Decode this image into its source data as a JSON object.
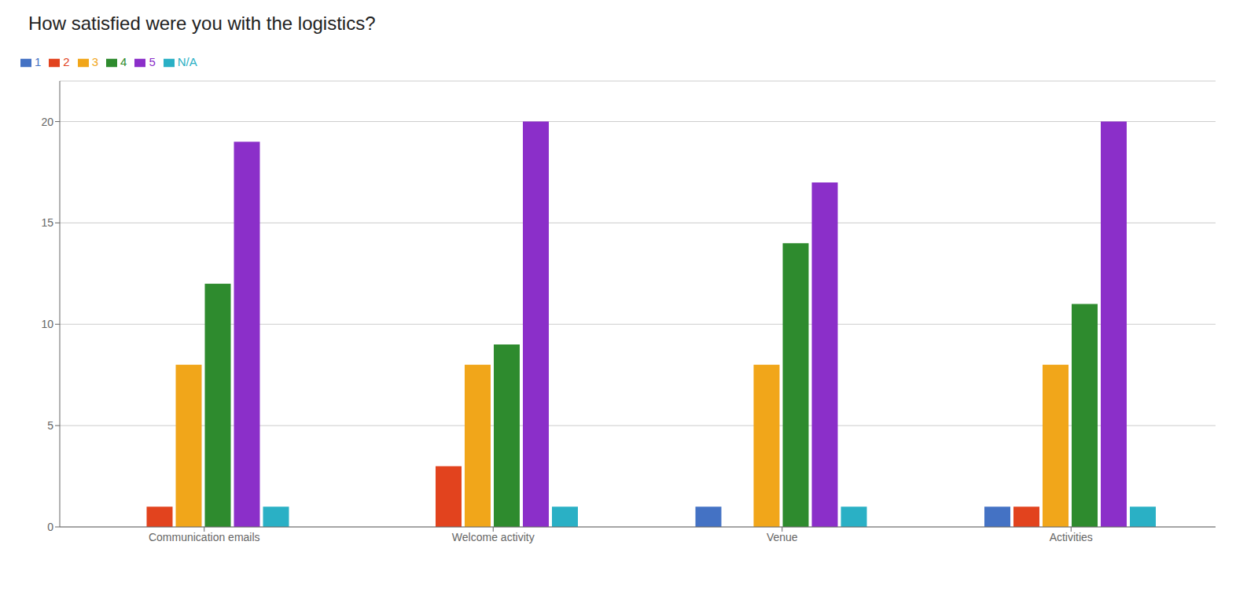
{
  "chart_data": {
    "type": "bar",
    "title": "How satisfied were you with the logistics?",
    "categories": [
      "Communication emails",
      "Welcome activity",
      "Venue",
      "Activities"
    ],
    "series": [
      {
        "name": "1",
        "color": "#4472c4",
        "values": [
          0,
          0,
          1,
          1
        ]
      },
      {
        "name": "2",
        "color": "#e2431e",
        "values": [
          1,
          3,
          0,
          1
        ]
      },
      {
        "name": "3",
        "color": "#f1a61a",
        "values": [
          8,
          8,
          8,
          8
        ]
      },
      {
        "name": "4",
        "color": "#2e8b2e",
        "values": [
          12,
          9,
          14,
          11
        ]
      },
      {
        "name": "5",
        "color": "#8b2fc9",
        "values": [
          19,
          20,
          17,
          20
        ]
      },
      {
        "name": "N/A",
        "color": "#2ab0c5",
        "values": [
          1,
          1,
          1,
          1
        ]
      }
    ],
    "ylim": [
      0,
      22
    ],
    "yticks": [
      0,
      5,
      10,
      15,
      20
    ],
    "grid": true,
    "legend": "upper left"
  }
}
